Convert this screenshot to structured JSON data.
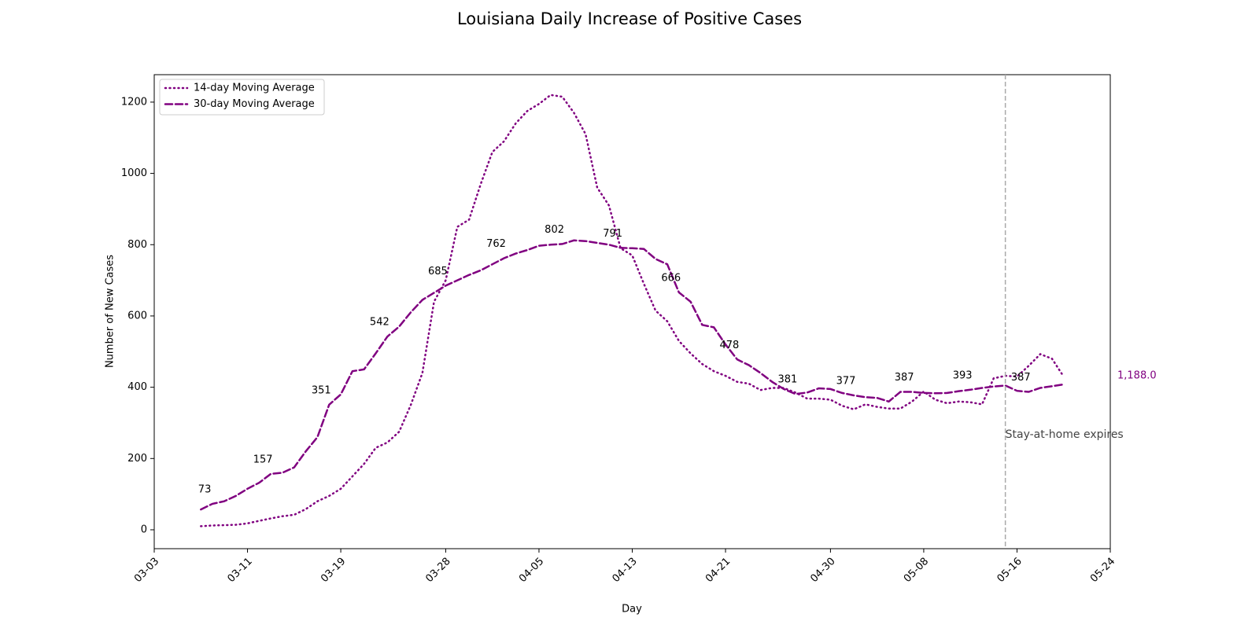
{
  "chart_data": {
    "type": "line",
    "title": "Louisiana Daily Increase of Positive Cases",
    "xlabel": "Day",
    "ylabel": "Number of New Cases",
    "x": [
      "03-07",
      "03-08",
      "03-09",
      "03-10",
      "03-11",
      "03-12",
      "03-13",
      "03-14",
      "03-15",
      "03-16",
      "03-17",
      "03-18",
      "03-19",
      "03-20",
      "03-21",
      "03-22",
      "03-23",
      "03-24",
      "03-25",
      "03-26",
      "03-27",
      "03-28",
      "03-29",
      "03-30",
      "03-31",
      "04-01",
      "04-02",
      "04-03",
      "04-04",
      "04-05",
      "04-06",
      "04-07",
      "04-08",
      "04-09",
      "04-10",
      "04-11",
      "04-12",
      "04-13",
      "04-14",
      "04-15",
      "04-16",
      "04-17",
      "04-18",
      "04-19",
      "04-20",
      "04-21",
      "04-22",
      "04-23",
      "04-24",
      "04-25",
      "04-26",
      "04-27",
      "04-28",
      "04-29",
      "04-30",
      "05-01",
      "05-02",
      "05-03",
      "05-04",
      "05-05",
      "05-06",
      "05-07",
      "05-08",
      "05-09",
      "05-10",
      "05-11",
      "05-12",
      "05-13",
      "05-14",
      "05-15",
      "05-16",
      "05-17",
      "05-18",
      "05-19",
      "05-20"
    ],
    "series": [
      {
        "name": "14-day Moving Average",
        "color": "#800080",
        "linestyle": "dotted",
        "values": [
          10,
          12,
          13,
          14,
          18,
          25,
          32,
          38,
          42,
          58,
          80,
          95,
          115,
          150,
          185,
          230,
          245,
          275,
          350,
          440,
          640,
          700,
          850,
          870,
          970,
          1060,
          1090,
          1140,
          1175,
          1195,
          1220,
          1215,
          1170,
          1110,
          960,
          910,
          790,
          770,
          690,
          615,
          585,
          530,
          495,
          465,
          445,
          432,
          415,
          410,
          392,
          398,
          398,
          385,
          368,
          368,
          365,
          348,
          338,
          352,
          345,
          340,
          340,
          360,
          388,
          365,
          355,
          360,
          358,
          352,
          425,
          432,
          430,
          460,
          493,
          480,
          430
        ]
      },
      {
        "name": "30-day Moving Average",
        "color": "#800080",
        "linestyle": "dashed",
        "values": [
          57,
          73,
          80,
          95,
          115,
          132,
          157,
          160,
          175,
          220,
          260,
          351,
          380,
          445,
          450,
          495,
          542,
          570,
          610,
          645,
          665,
          685,
          700,
          715,
          728,
          745,
          762,
          775,
          785,
          797,
          800,
          802,
          812,
          810,
          805,
          800,
          791,
          790,
          788,
          760,
          745,
          666,
          640,
          575,
          568,
          520,
          478,
          462,
          440,
          415,
          395,
          381,
          385,
          397,
          395,
          384,
          377,
          372,
          370,
          360,
          387,
          387,
          384,
          383,
          384,
          389,
          393,
          398,
          402,
          405,
          390,
          387,
          398,
          403,
          408
        ]
      }
    ],
    "xlim": [
      "03-03",
      "05-24"
    ],
    "xticks": [
      "03-03",
      "03-11",
      "03-19",
      "03-28",
      "04-05",
      "04-13",
      "04-21",
      "04-30",
      "05-08",
      "05-16",
      "05-24"
    ],
    "ylim": [
      -53,
      1277
    ],
    "yticks": [
      0,
      200,
      400,
      600,
      800,
      1000,
      1200
    ],
    "legend": "upper left",
    "vline": {
      "x": "05-15",
      "label": "Stay-at-home expires",
      "color": "#aaaaaa"
    },
    "annotation": {
      "text": "1,188.0",
      "color": "#800080"
    }
  }
}
